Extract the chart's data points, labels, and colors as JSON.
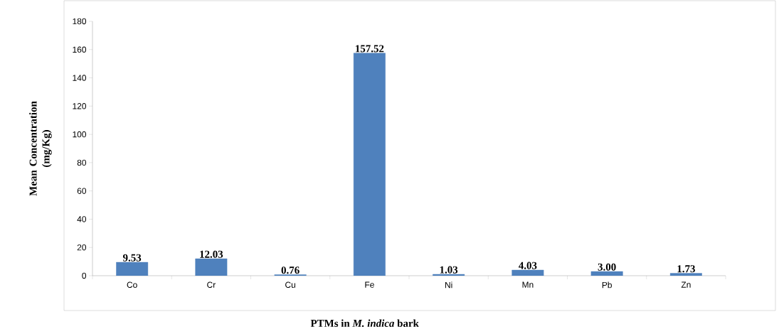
{
  "chart_data": {
    "type": "bar",
    "xlabel": "PTMs in *M. indica* bark",
    "ylabel": "Mean Concentration (mg/Kg)",
    "categories": [
      "Co",
      "Cr",
      "Cu",
      "Fe",
      "Ni",
      "Mn",
      "Pb",
      "Zn"
    ],
    "values": [
      9.53,
      12.03,
      0.76,
      157.52,
      1.03,
      4.03,
      3.0,
      1.73
    ],
    "value_labels": [
      "9.53",
      "12.03",
      "0.76",
      "157.52",
      "1.03",
      "4.03",
      "3.00",
      "1.73"
    ],
    "color": "#4f81bd",
    "ylim": [
      0,
      180
    ],
    "yticks": [
      0,
      20,
      40,
      60,
      80,
      100,
      120,
      140,
      160,
      180
    ],
    "grid": false
  }
}
